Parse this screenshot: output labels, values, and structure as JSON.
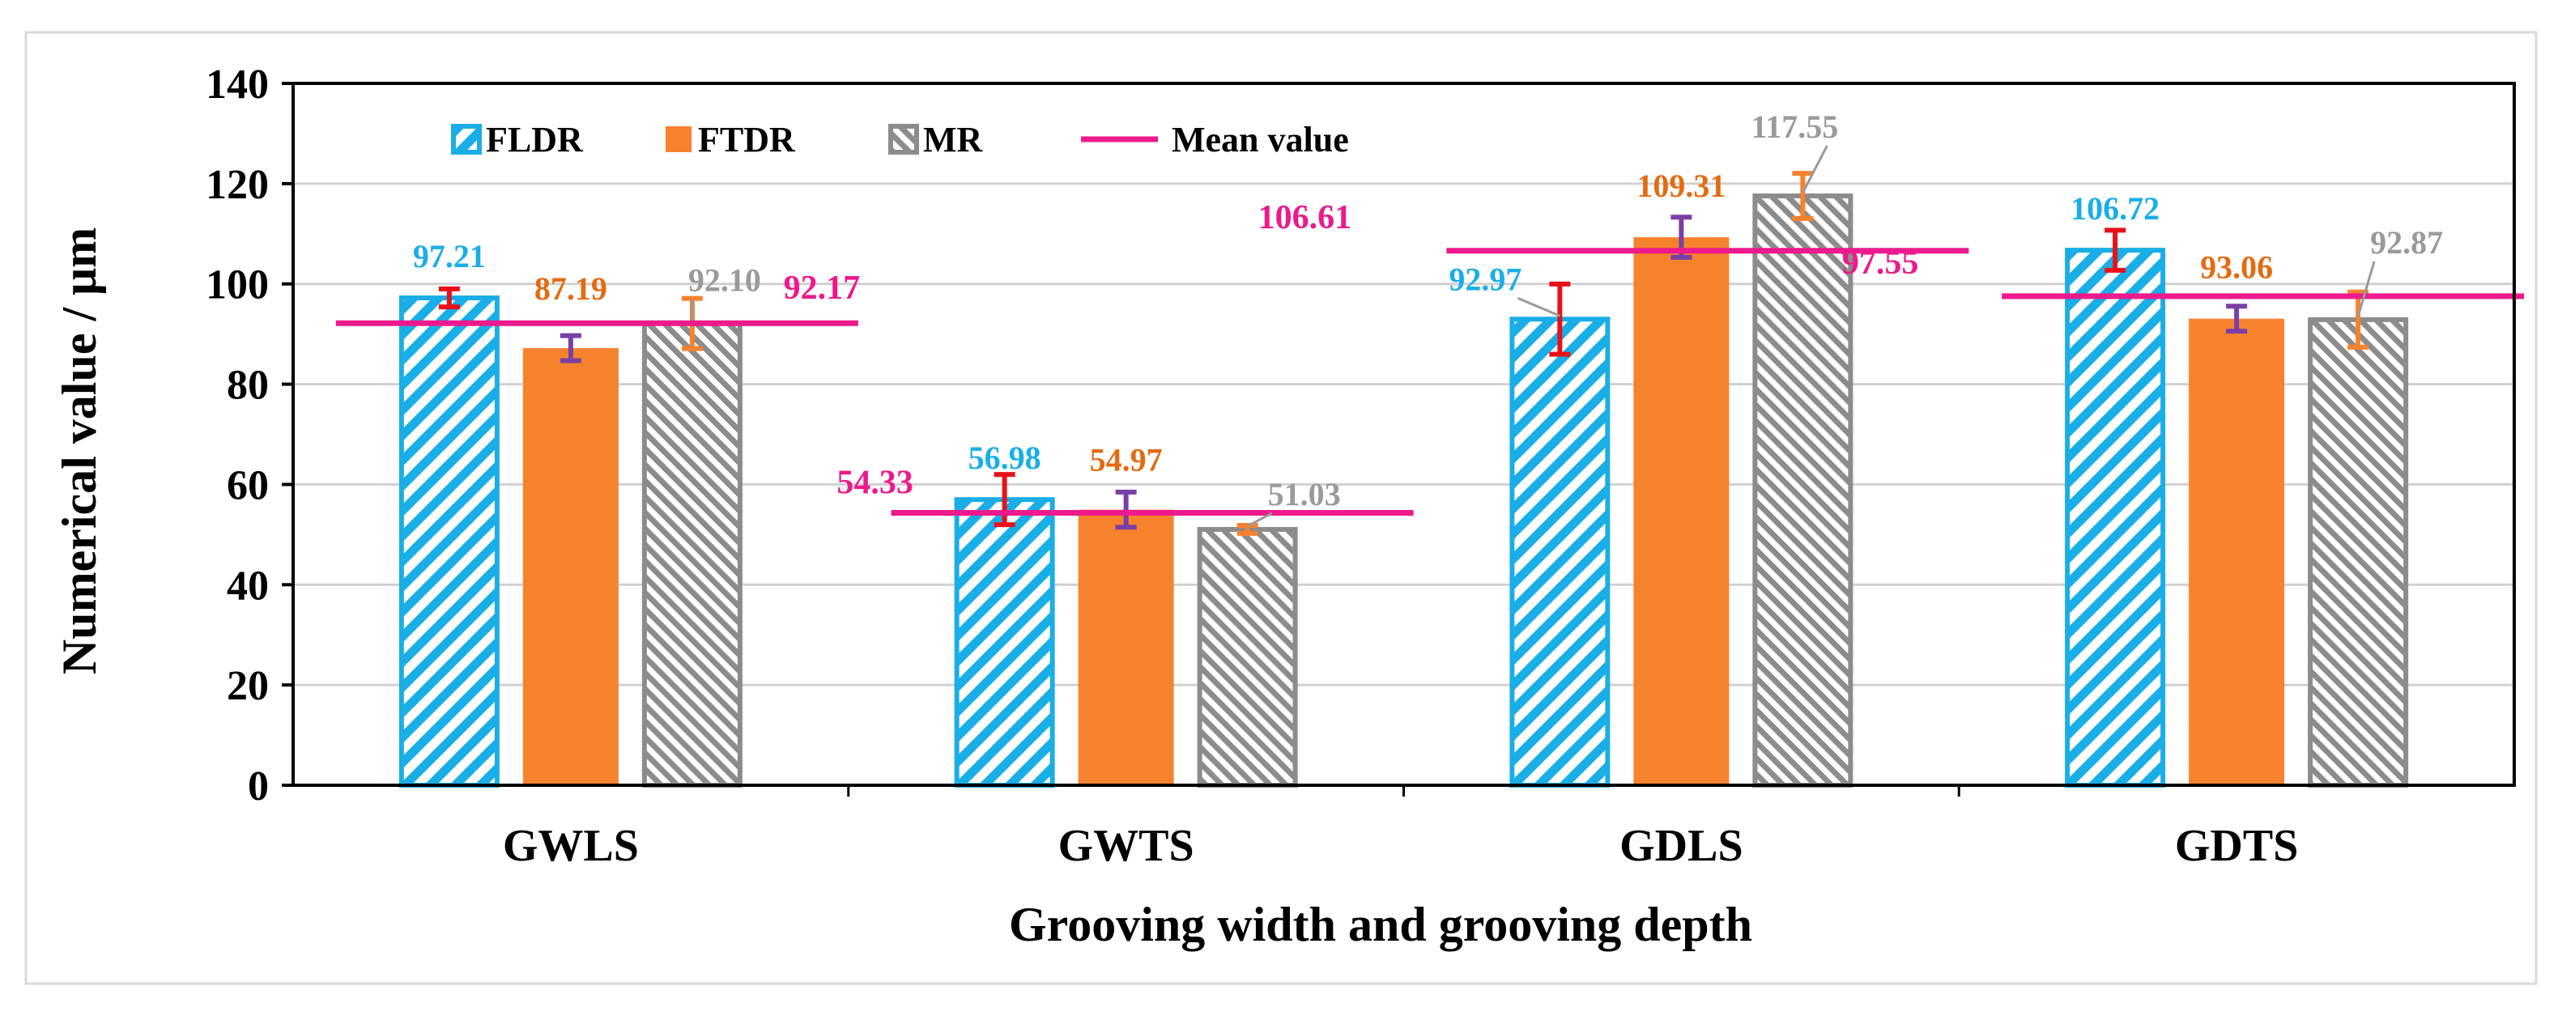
{
  "chart_data": {
    "type": "bar",
    "title": "",
    "xlabel": "Grooving width and grooving depth",
    "ylabel": "Numerical value / μm",
    "ylim": [
      0,
      140
    ],
    "yticks": [
      0,
      20,
      40,
      60,
      80,
      100,
      120,
      140
    ],
    "categories": [
      "GWLS",
      "GWTS",
      "GDLS",
      "GDTS"
    ],
    "series": [
      {
        "name": "FLDR",
        "values": [
          97.21,
          56.98,
          92.97,
          106.72
        ],
        "errors": [
          1.8,
          5.0,
          7.0,
          4.0
        ],
        "label_texts": [
          "97.21",
          "56.98",
          "92.97",
          "106.72"
        ],
        "color": "#1AAEE6",
        "fill": "hatch-blue",
        "error_color": "#E8111A"
      },
      {
        "name": "FTDR",
        "values": [
          87.19,
          54.97,
          109.31,
          93.06
        ],
        "errors": [
          2.5,
          3.5,
          4.0,
          2.5
        ],
        "label_texts": [
          "87.19",
          "54.97",
          "109.31",
          "93.06"
        ],
        "color": "#F7822E",
        "fill": "solid",
        "error_color": "#7A3FA6"
      },
      {
        "name": "MR",
        "values": [
          92.1,
          51.03,
          117.55,
          92.87
        ],
        "errors": [
          5.0,
          0.8,
          4.5,
          5.5
        ],
        "label_texts": [
          "92.10",
          "51.03",
          "117.55",
          "92.87"
        ],
        "color": "#8C8C8C",
        "fill": "hatch-gray",
        "error_color": "#F7822E"
      }
    ],
    "mean_value": {
      "name": "Mean value",
      "values": [
        92.17,
        54.33,
        106.61,
        97.55
      ],
      "label_texts": [
        "92.17",
        "54.33",
        "106.61",
        "97.55"
      ],
      "color": "#EC1A8C"
    },
    "label_colors": {
      "FLDR": "#1AAEE6",
      "FTDR": "#E36B12",
      "MR": "#9A9A9A",
      "Mean value": "#EC1A8C"
    },
    "legend_position": "top-left",
    "grid": true
  }
}
